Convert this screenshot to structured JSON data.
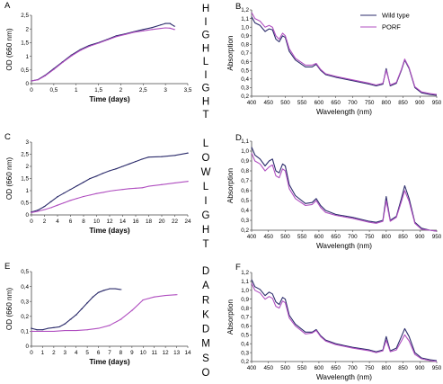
{
  "colors": {
    "wild_type": "#2b2b6b",
    "porf": "#b04fc0",
    "axis": "#444444"
  },
  "chart_data": [
    {
      "panel": "A",
      "type": "line",
      "xlabel": "Time (days)",
      "ylabel": "OD (660 nm)",
      "xlim": [
        0,
        3.5
      ],
      "ylim": [
        0,
        2.5
      ],
      "xticks": [
        "0",
        "0,5",
        "1",
        "1,5",
        "2",
        "2,5",
        "3",
        "3,5"
      ],
      "yticks": [
        "0",
        "0,5",
        "1",
        "1,5",
        "2",
        "2,5"
      ],
      "grid": false,
      "series": [
        {
          "key": "wild_type",
          "markers": true,
          "x": [
            0,
            0.15,
            0.3,
            0.5,
            0.7,
            0.9,
            1.1,
            1.3,
            1.5,
            1.7,
            1.9,
            2.1,
            2.3,
            2.5,
            2.7,
            2.9,
            3.0,
            3.1,
            3.2
          ],
          "y": [
            0.1,
            0.15,
            0.3,
            0.55,
            0.8,
            1.05,
            1.25,
            1.4,
            1.5,
            1.62,
            1.75,
            1.82,
            1.9,
            1.98,
            2.05,
            2.15,
            2.2,
            2.2,
            2.1
          ]
        },
        {
          "key": "porf",
          "markers": false,
          "x": [
            0,
            0.15,
            0.3,
            0.5,
            0.7,
            0.9,
            1.1,
            1.3,
            1.5,
            1.7,
            1.9,
            2.1,
            2.3,
            2.5,
            2.7,
            2.9,
            3.0,
            3.1,
            3.2
          ],
          "y": [
            0.1,
            0.14,
            0.28,
            0.52,
            0.78,
            1.02,
            1.22,
            1.37,
            1.48,
            1.6,
            1.72,
            1.8,
            1.88,
            1.93,
            1.98,
            2.02,
            2.04,
            2.03,
            1.98
          ]
        }
      ]
    },
    {
      "panel": "B",
      "type": "line",
      "xlabel": "Wavelength (nm)",
      "ylabel": "Absorption",
      "xlim": [
        400,
        950
      ],
      "ylim": [
        0.2,
        1.2
      ],
      "xticks": [
        "400",
        "450",
        "500",
        "550",
        "600",
        "650",
        "700",
        "750",
        "800",
        "850",
        "900",
        "950"
      ],
      "yticks": [
        "0,2",
        "0,3",
        "0,4",
        "0,5",
        "0,6",
        "0,7",
        "0,8",
        "0,9",
        "1,0",
        "1,1",
        "1,2"
      ],
      "grid": false,
      "legend": "top-right",
      "series": [
        {
          "key": "wild_type",
          "name": "Wild type",
          "x": [
            400,
            410,
            425,
            440,
            452,
            462,
            472,
            482,
            492,
            500,
            512,
            530,
            560,
            580,
            592,
            605,
            620,
            650,
            700,
            750,
            770,
            790,
            800,
            812,
            830,
            845,
            855,
            868,
            885,
            905,
            930,
            950
          ],
          "y": [
            1.12,
            1.05,
            1.02,
            0.95,
            0.98,
            0.97,
            0.86,
            0.83,
            0.9,
            0.88,
            0.72,
            0.62,
            0.54,
            0.54,
            0.57,
            0.5,
            0.45,
            0.42,
            0.38,
            0.34,
            0.32,
            0.34,
            0.52,
            0.32,
            0.35,
            0.5,
            0.62,
            0.52,
            0.3,
            0.24,
            0.22,
            0.21
          ]
        },
        {
          "key": "porf",
          "name": "PORF",
          "x": [
            400,
            410,
            425,
            440,
            452,
            462,
            472,
            482,
            492,
            500,
            512,
            530,
            560,
            580,
            592,
            605,
            620,
            650,
            700,
            750,
            770,
            790,
            800,
            812,
            830,
            845,
            855,
            868,
            885,
            905,
            930,
            950
          ],
          "y": [
            1.17,
            1.1,
            1.07,
            1.0,
            1.02,
            1.0,
            0.9,
            0.86,
            0.93,
            0.9,
            0.75,
            0.64,
            0.56,
            0.56,
            0.58,
            0.51,
            0.46,
            0.43,
            0.39,
            0.35,
            0.33,
            0.35,
            0.5,
            0.33,
            0.36,
            0.51,
            0.63,
            0.53,
            0.31,
            0.25,
            0.23,
            0.22
          ]
        }
      ]
    },
    {
      "panel": "C",
      "type": "line",
      "xlabel": "Time (days)",
      "ylabel": "OD (660 nm)",
      "xlim": [
        0,
        24
      ],
      "ylim": [
        0,
        3
      ],
      "xticks": [
        "0",
        "2",
        "4",
        "6",
        "8",
        "10",
        "12",
        "14",
        "16",
        "18",
        "20",
        "22",
        "24"
      ],
      "yticks": [
        "0",
        "0,5",
        "1",
        "1,5",
        "2",
        "2,5",
        "3"
      ],
      "grid": false,
      "series": [
        {
          "key": "wild_type",
          "x": [
            0,
            1,
            2,
            3,
            4,
            5,
            6,
            7,
            8,
            9,
            10,
            11,
            12,
            13,
            14,
            15,
            16,
            17,
            18,
            20,
            22,
            24
          ],
          "y": [
            0.12,
            0.2,
            0.35,
            0.55,
            0.75,
            0.9,
            1.05,
            1.2,
            1.35,
            1.5,
            1.6,
            1.72,
            1.82,
            1.9,
            2.0,
            2.1,
            2.2,
            2.3,
            2.38,
            2.4,
            2.45,
            2.55
          ]
        },
        {
          "key": "porf",
          "x": [
            0,
            1,
            2,
            3,
            4,
            5,
            6,
            7,
            8,
            9,
            10,
            11,
            12,
            13,
            14,
            15,
            16,
            17,
            18,
            20,
            22,
            24
          ],
          "y": [
            0.1,
            0.15,
            0.22,
            0.3,
            0.4,
            0.5,
            0.6,
            0.68,
            0.76,
            0.82,
            0.88,
            0.93,
            0.98,
            1.02,
            1.05,
            1.08,
            1.1,
            1.12,
            1.18,
            1.25,
            1.32,
            1.38
          ]
        }
      ]
    },
    {
      "panel": "D",
      "type": "line",
      "xlabel": "Wavelength (nm)",
      "ylabel": "Absorption",
      "xlim": [
        400,
        950
      ],
      "ylim": [
        0.2,
        1.1
      ],
      "xticks": [
        "400",
        "450",
        "500",
        "550",
        "600",
        "650",
        "700",
        "750",
        "800",
        "850",
        "900",
        "950"
      ],
      "yticks": [
        "0,2",
        "0,3",
        "0,4",
        "0,5",
        "0,6",
        "0,7",
        "0,8",
        "0,9",
        "1,0",
        "1,1"
      ],
      "grid": false,
      "series": [
        {
          "key": "wild_type",
          "x": [
            400,
            410,
            425,
            440,
            452,
            462,
            472,
            482,
            492,
            500,
            512,
            530,
            560,
            580,
            592,
            605,
            620,
            650,
            700,
            750,
            770,
            790,
            800,
            812,
            830,
            845,
            855,
            868,
            885,
            905,
            930,
            950
          ],
          "y": [
            1.04,
            0.96,
            0.92,
            0.85,
            0.9,
            0.92,
            0.8,
            0.78,
            0.87,
            0.85,
            0.66,
            0.55,
            0.47,
            0.48,
            0.52,
            0.45,
            0.4,
            0.36,
            0.33,
            0.29,
            0.28,
            0.3,
            0.54,
            0.3,
            0.34,
            0.52,
            0.65,
            0.52,
            0.28,
            0.22,
            0.2,
            0.19
          ]
        },
        {
          "key": "porf",
          "x": [
            400,
            410,
            425,
            440,
            452,
            462,
            472,
            482,
            492,
            500,
            512,
            530,
            560,
            580,
            592,
            605,
            620,
            650,
            700,
            750,
            770,
            790,
            800,
            812,
            830,
            845,
            855,
            868,
            885,
            905,
            930,
            950
          ],
          "y": [
            0.98,
            0.9,
            0.87,
            0.8,
            0.84,
            0.86,
            0.75,
            0.73,
            0.82,
            0.8,
            0.62,
            0.52,
            0.45,
            0.46,
            0.5,
            0.43,
            0.38,
            0.35,
            0.32,
            0.28,
            0.27,
            0.29,
            0.5,
            0.29,
            0.33,
            0.49,
            0.6,
            0.49,
            0.27,
            0.21,
            0.2,
            0.19
          ]
        }
      ]
    },
    {
      "panel": "E",
      "type": "line",
      "xlabel": "Time (days)",
      "ylabel": "OD (660 nm)",
      "xlim": [
        0,
        14
      ],
      "ylim": [
        0,
        0.5
      ],
      "xticks": [
        "0",
        "1",
        "2",
        "3",
        "4",
        "5",
        "6",
        "7",
        "8",
        "9",
        "10",
        "11",
        "12",
        "13",
        "14"
      ],
      "yticks": [
        "0",
        "0,1",
        "0,2",
        "0,3",
        "0,4",
        "0,5"
      ],
      "grid": false,
      "series": [
        {
          "key": "wild_type",
          "x": [
            0,
            0.5,
            1,
            1.5,
            2,
            2.5,
            3,
            3.5,
            4,
            4.5,
            5,
            5.5,
            6,
            6.5,
            7,
            7.5,
            8
          ],
          "y": [
            0.12,
            0.11,
            0.11,
            0.12,
            0.125,
            0.13,
            0.15,
            0.18,
            0.21,
            0.25,
            0.29,
            0.33,
            0.36,
            0.375,
            0.385,
            0.385,
            0.38
          ]
        },
        {
          "key": "porf",
          "x": [
            0,
            1,
            2,
            3,
            4,
            5,
            6,
            7,
            8,
            9,
            10,
            11,
            12,
            13
          ],
          "y": [
            0.1,
            0.1,
            0.1,
            0.105,
            0.105,
            0.11,
            0.12,
            0.14,
            0.18,
            0.24,
            0.31,
            0.33,
            0.34,
            0.345
          ]
        }
      ]
    },
    {
      "panel": "F",
      "type": "line",
      "xlabel": "Wavelength (nm)",
      "ylabel": "Absorption",
      "xlim": [
        400,
        950
      ],
      "ylim": [
        0.2,
        1.2
      ],
      "xticks": [
        "400",
        "450",
        "500",
        "550",
        "600",
        "650",
        "700",
        "750",
        "800",
        "850",
        "900",
        "950"
      ],
      "yticks": [
        "0,2",
        "0,3",
        "0,4",
        "0,5",
        "0,6",
        "0,7",
        "0,8",
        "0,9",
        "1,0",
        "1,1",
        "1,2"
      ],
      "grid": false,
      "series": [
        {
          "key": "wild_type",
          "x": [
            400,
            410,
            425,
            440,
            452,
            462,
            472,
            482,
            492,
            500,
            512,
            530,
            560,
            580,
            592,
            605,
            620,
            650,
            700,
            750,
            770,
            790,
            800,
            812,
            830,
            845,
            855,
            868,
            885,
            905,
            930,
            950
          ],
          "y": [
            1.12,
            1.04,
            1.01,
            0.94,
            0.98,
            0.96,
            0.87,
            0.84,
            0.92,
            0.9,
            0.72,
            0.62,
            0.53,
            0.53,
            0.56,
            0.49,
            0.44,
            0.4,
            0.36,
            0.33,
            0.31,
            0.33,
            0.48,
            0.32,
            0.35,
            0.48,
            0.57,
            0.48,
            0.3,
            0.24,
            0.22,
            0.21
          ]
        },
        {
          "key": "porf",
          "x": [
            400,
            410,
            425,
            440,
            452,
            462,
            472,
            482,
            492,
            500,
            512,
            530,
            560,
            580,
            592,
            605,
            620,
            650,
            700,
            750,
            770,
            790,
            800,
            812,
            830,
            845,
            855,
            868,
            885,
            905,
            930,
            950
          ],
          "y": [
            1.08,
            1.0,
            0.97,
            0.9,
            0.93,
            0.91,
            0.82,
            0.8,
            0.88,
            0.86,
            0.69,
            0.6,
            0.51,
            0.52,
            0.55,
            0.48,
            0.43,
            0.39,
            0.35,
            0.32,
            0.3,
            0.32,
            0.44,
            0.31,
            0.33,
            0.43,
            0.5,
            0.43,
            0.28,
            0.23,
            0.21,
            0.2
          ]
        }
      ]
    }
  ],
  "condition_labels": [
    {
      "panel": "AB",
      "letters": [
        "H",
        "I",
        "G",
        "H",
        "L",
        "I",
        "G",
        "H",
        "T"
      ]
    },
    {
      "panel": "CD",
      "letters": [
        "L",
        "O",
        "W",
        "L",
        "I",
        "G",
        "H",
        "T"
      ]
    },
    {
      "panel": "EF",
      "letters": [
        "D",
        "A",
        "R",
        "K",
        "D",
        "M",
        "S",
        "O"
      ]
    }
  ]
}
